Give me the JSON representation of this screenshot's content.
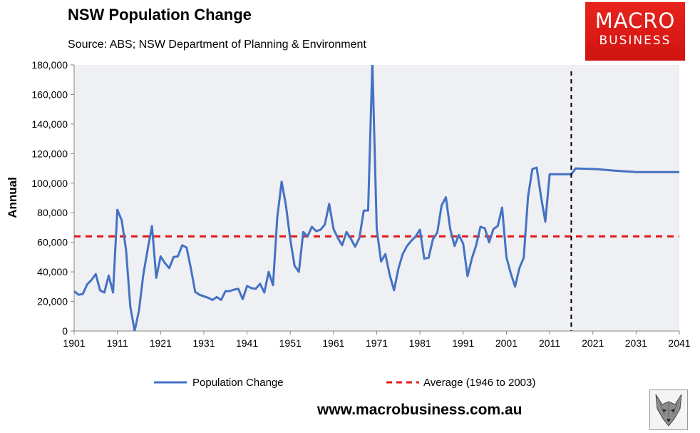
{
  "chart_data": {
    "type": "line",
    "title": "NSW Population Change",
    "subtitle": "Source: ABS; NSW Department of Planning & Environment",
    "ylabel": "Annual",
    "xlabel": "",
    "xlim": [
      1901,
      2041
    ],
    "ylim": [
      0,
      180000
    ],
    "x_ticks": [
      1901,
      1911,
      1921,
      1931,
      1941,
      1951,
      1961,
      1971,
      1981,
      1991,
      2001,
      2011,
      2021,
      2031,
      2041
    ],
    "y_ticks": [
      0,
      20000,
      40000,
      60000,
      80000,
      100000,
      120000,
      140000,
      160000,
      180000
    ],
    "y_tick_labels": [
      "0",
      "20,000",
      "40,000",
      "60,000",
      "80,000",
      "100,000",
      "120,000",
      "140,000",
      "160,000",
      "180,000"
    ],
    "grid": false,
    "legend_position": "bottom",
    "series": [
      {
        "name": "Population Change",
        "color": "#4472c4",
        "style": "solid",
        "points": [
          [
            1901,
            27000
          ],
          [
            1902,
            24500
          ],
          [
            1903,
            25000
          ],
          [
            1904,
            31500
          ],
          [
            1905,
            34500
          ],
          [
            1906,
            38500
          ],
          [
            1907,
            27500
          ],
          [
            1908,
            26000
          ],
          [
            1909,
            37500
          ],
          [
            1910,
            26000
          ],
          [
            1911,
            82000
          ],
          [
            1912,
            75000
          ],
          [
            1913,
            55000
          ],
          [
            1914,
            16500
          ],
          [
            1915,
            0
          ],
          [
            1916,
            14000
          ],
          [
            1917,
            38000
          ],
          [
            1918,
            55000
          ],
          [
            1919,
            71000
          ],
          [
            1920,
            36000
          ],
          [
            1921,
            50500
          ],
          [
            1922,
            46000
          ],
          [
            1923,
            42500
          ],
          [
            1924,
            50000
          ],
          [
            1925,
            50500
          ],
          [
            1926,
            58000
          ],
          [
            1927,
            56500
          ],
          [
            1928,
            42500
          ],
          [
            1929,
            26500
          ],
          [
            1930,
            24500
          ],
          [
            1931,
            23500
          ],
          [
            1932,
            22500
          ],
          [
            1933,
            21000
          ],
          [
            1934,
            23000
          ],
          [
            1935,
            21000
          ],
          [
            1936,
            27000
          ],
          [
            1937,
            27000
          ],
          [
            1938,
            28000
          ],
          [
            1939,
            28500
          ],
          [
            1940,
            21500
          ],
          [
            1941,
            30500
          ],
          [
            1942,
            29000
          ],
          [
            1943,
            28500
          ],
          [
            1944,
            32000
          ],
          [
            1945,
            26000
          ],
          [
            1946,
            40000
          ],
          [
            1947,
            31000
          ],
          [
            1948,
            77000
          ],
          [
            1949,
            101000
          ],
          [
            1950,
            85000
          ],
          [
            1951,
            62000
          ],
          [
            1952,
            44000
          ],
          [
            1953,
            40000
          ],
          [
            1954,
            67000
          ],
          [
            1955,
            64000
          ],
          [
            1956,
            70500
          ],
          [
            1957,
            67500
          ],
          [
            1958,
            68500
          ],
          [
            1959,
            72000
          ],
          [
            1960,
            86000
          ],
          [
            1961,
            69000
          ],
          [
            1962,
            63000
          ],
          [
            1963,
            58000
          ],
          [
            1964,
            67000
          ],
          [
            1965,
            62500
          ],
          [
            1966,
            57000
          ],
          [
            1967,
            63000
          ],
          [
            1968,
            81500
          ],
          [
            1969,
            81500
          ],
          [
            1970,
            182000
          ],
          [
            1971,
            69000
          ],
          [
            1972,
            47000
          ],
          [
            1973,
            52000
          ],
          [
            1974,
            38000
          ],
          [
            1975,
            27500
          ],
          [
            1976,
            42000
          ],
          [
            1977,
            52000
          ],
          [
            1978,
            57500
          ],
          [
            1979,
            61000
          ],
          [
            1980,
            64000
          ],
          [
            1981,
            68500
          ],
          [
            1982,
            49000
          ],
          [
            1983,
            49500
          ],
          [
            1984,
            62000
          ],
          [
            1985,
            66500
          ],
          [
            1986,
            85000
          ],
          [
            1987,
            90500
          ],
          [
            1988,
            69000
          ],
          [
            1989,
            57500
          ],
          [
            1990,
            65000
          ],
          [
            1991,
            59000
          ],
          [
            1992,
            37000
          ],
          [
            1993,
            49000
          ],
          [
            1994,
            58000
          ],
          [
            1995,
            70500
          ],
          [
            1996,
            69500
          ],
          [
            1997,
            60000
          ],
          [
            1998,
            69000
          ],
          [
            1999,
            71000
          ],
          [
            2000,
            83500
          ],
          [
            2001,
            50000
          ],
          [
            2002,
            39000
          ],
          [
            2003,
            30000
          ],
          [
            2004,
            42500
          ],
          [
            2005,
            49500
          ],
          [
            2006,
            91000
          ],
          [
            2007,
            109500
          ],
          [
            2008,
            110500
          ],
          [
            2009,
            91000
          ],
          [
            2010,
            74000
          ],
          [
            2011,
            106000
          ],
          [
            2016,
            106000
          ],
          [
            2017,
            110000
          ],
          [
            2022,
            109500
          ],
          [
            2026,
            108500
          ],
          [
            2031,
            107500
          ],
          [
            2041,
            107500
          ]
        ]
      },
      {
        "name": "Average (1946 to 2003)",
        "color": "#e3191b",
        "style": "dashed",
        "points": [
          [
            1901,
            64000
          ],
          [
            2041,
            64000
          ]
        ]
      }
    ],
    "vertical_marker": {
      "x": 2016,
      "color": "#000000",
      "style": "dashed"
    }
  },
  "branding": {
    "logo_line1": "MACRO",
    "logo_line2": "BUSINESS",
    "logo_color": "#e3191b",
    "footer_url": "www.macrobusiness.com.au"
  }
}
